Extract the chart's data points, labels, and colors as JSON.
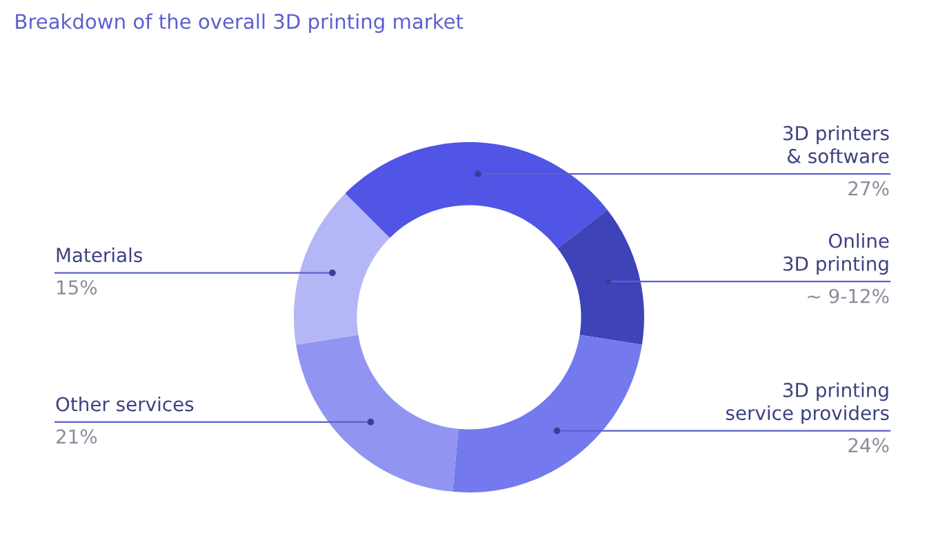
{
  "chart_data": {
    "type": "donut",
    "title": "Breakdown of the overall 3D printing market",
    "categories": [
      "3D printers\n& software",
      "Online\n3D printing",
      "3D printing\nservice providers",
      "Other services",
      "Materials"
    ],
    "values": [
      27,
      13,
      24,
      21,
      15
    ],
    "value_labels": [
      "27%",
      null,
      "24%",
      "21%",
      "15%"
    ],
    "annotations": [
      "~ 9-12%"
    ],
    "colors": [
      "#5055e6",
      "#3e43b8",
      "#7479ee",
      "#9195f1",
      "#b4b6f6"
    ],
    "legend": false
  }
}
